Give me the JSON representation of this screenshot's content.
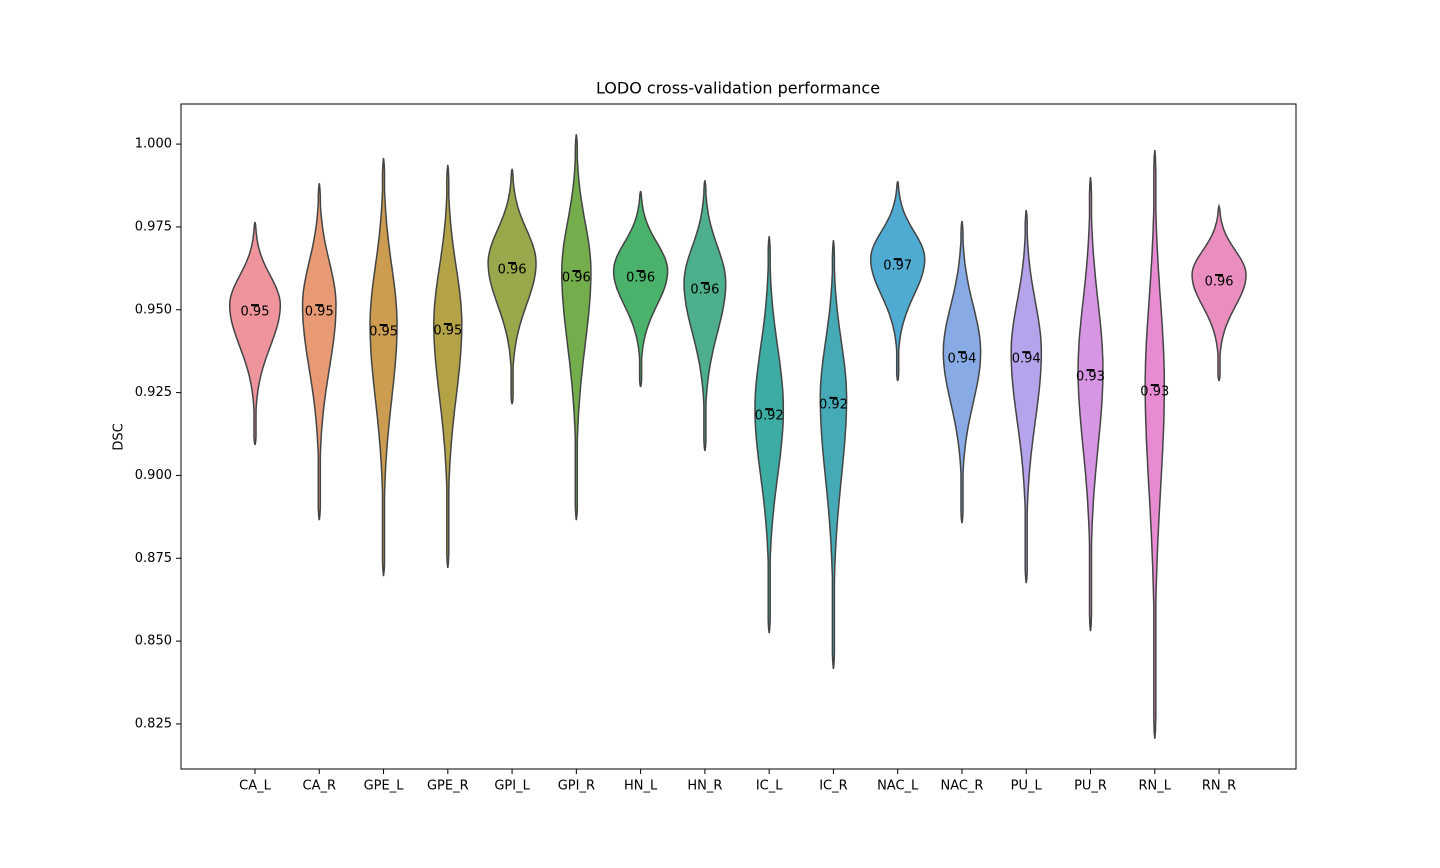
{
  "chart_data": {
    "type": "violin",
    "title": "LODO cross-validation performance",
    "y_label": "DSC",
    "categories": [
      "CA_L",
      "CA_R",
      "GPE_L",
      "GPE_R",
      "GPI_L",
      "GPI_R",
      "HN_L",
      "HN_R",
      "IC_L",
      "IC_R",
      "NAC_L",
      "NAC_R",
      "PU_L",
      "PU_R",
      "RN_L",
      "RN_R"
    ],
    "colors": [
      "#ef949c",
      "#e79a73",
      "#cc9c50",
      "#b3a246",
      "#99a84a",
      "#74ad4c",
      "#4ab26a",
      "#4daf8c",
      "#3daca3",
      "#45aab5",
      "#4fabd1",
      "#89abe5",
      "#b5a3ec",
      "#d696e3",
      "#e98bd3",
      "#ea8ec0"
    ],
    "max": [
      0.9765,
      0.9882,
      0.9958,
      0.9937,
      0.9925,
      1.003,
      0.9858,
      0.9891,
      0.9722,
      0.971,
      0.9888,
      0.9768,
      0.9801,
      0.99,
      0.9982,
      0.9813
    ],
    "min": [
      0.9092,
      0.8865,
      0.8696,
      0.8721,
      0.9215,
      0.8865,
      0.9267,
      0.9074,
      0.8524,
      0.8416,
      0.9285,
      0.8856,
      0.8675,
      0.853,
      0.8205,
      0.9285
    ],
    "values": [
      0.9514,
      0.9514,
      0.9454,
      0.9457,
      0.9641,
      0.9617,
      0.9617,
      0.9581,
      0.92,
      0.9234,
      0.9653,
      0.9372,
      0.9372,
      0.9318,
      0.9273,
      0.9605
    ],
    "value_labels": [
      "0.95",
      "0.95",
      "0.95",
      "0.95",
      "0.96",
      "0.96",
      "0.96",
      "0.96",
      "0.92",
      "0.92",
      "0.97",
      "0.94",
      "0.94",
      "0.93",
      "0.93",
      "0.96"
    ],
    "ylim": [
      0.8114,
      1.0121
    ],
    "yticks": [
      {
        "value": 0.85,
        "label": "0.850"
      },
      0.825,
      0.875,
      {
        "value": 0.9,
        "label": "0.900"
      },
      0.925,
      {
        "value": 0.95,
        "label": "0.950"
      },
      0.975,
      {
        "value": 1.0,
        "label": "1.000"
      }
    ]
  }
}
